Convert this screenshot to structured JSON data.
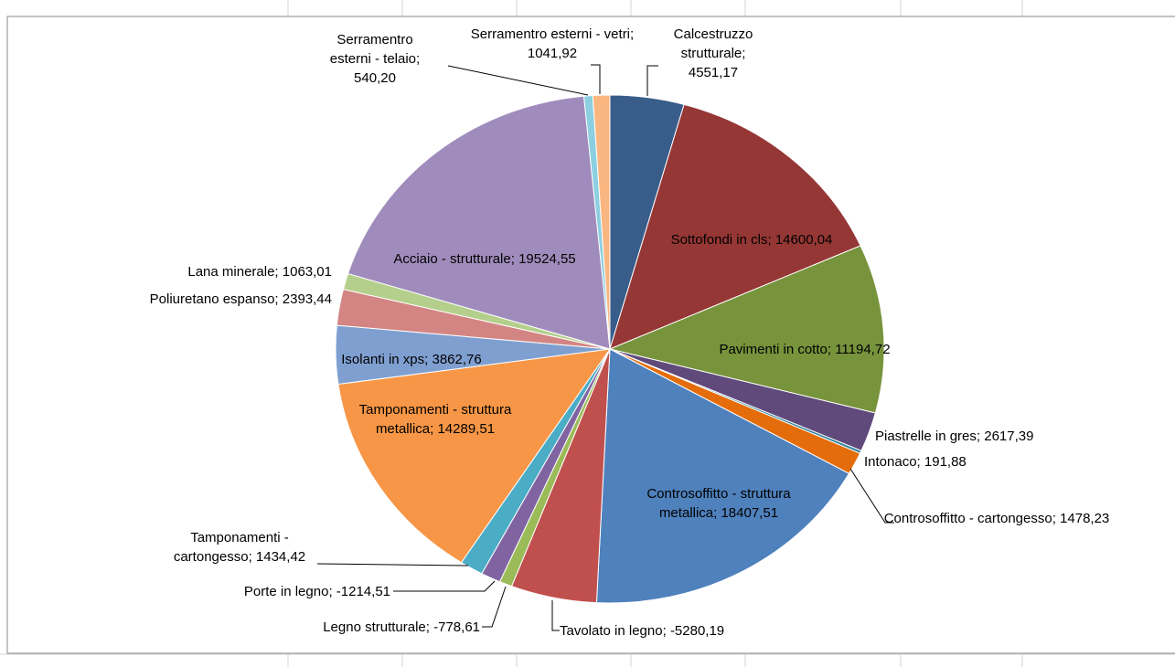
{
  "chart_data": {
    "type": "pie",
    "categories": [
      "Calcestruzzo strutturale",
      "Sottofondi in cls",
      "Pavimenti in cotto",
      "Piastrelle in gres",
      "Intonaco",
      "Controsoffitto - cartongesso",
      "Controsoffitto - struttura metallica",
      "Tavolato in legno",
      "Legno strutturale",
      "Porte in legno",
      "Tamponamenti - cartongesso",
      "Tamponamenti - struttura metallica",
      "Isolanti in xps",
      "Poliuretano espanso",
      "Lana minerale",
      "Acciaio - strutturale",
      "Serramentro esterni - telaio",
      "Serramentro esterni - vetri"
    ],
    "values": [
      4551.17,
      14600.04,
      11194.72,
      2617.39,
      191.88,
      1478.23,
      18407.51,
      -5280.19,
      -778.61,
      -1214.51,
      1434.42,
      14289.51,
      3862.76,
      2393.44,
      1063.01,
      19524.55,
      540.2,
      1041.92
    ],
    "value_labels": [
      "4551,17",
      "14600,04",
      "11194,72",
      "2617,39",
      "191,88",
      "1478,23",
      "18407,51",
      "-5280,19",
      "-778,61",
      "-1214,51",
      "1434,42",
      "14289,51",
      "3862,76",
      "2393,44",
      "1063,01",
      "19524,55",
      "540,20",
      "1041,92"
    ],
    "data_label_separator": "; ",
    "colors": [
      "#385d8a",
      "#953735",
      "#77933c",
      "#604a7b",
      "#31859c",
      "#e46c0a",
      "#4f81bd",
      "#c0504d",
      "#9bbb59",
      "#8064a2",
      "#4bacc6",
      "#f79646",
      "#7f9fd0",
      "#d38583",
      "#b4cf8c",
      "#a08cbc",
      "#8ccfe0",
      "#fab680"
    ]
  }
}
